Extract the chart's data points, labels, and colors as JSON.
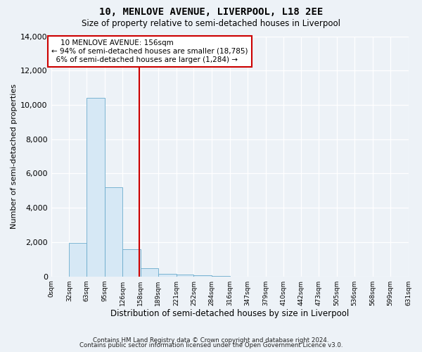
{
  "title": "10, MENLOVE AVENUE, LIVERPOOL, L18 2EE",
  "subtitle": "Size of property relative to semi-detached houses in Liverpool",
  "xlabel": "Distribution of semi-detached houses by size in Liverpool",
  "ylabel": "Number of semi-detached properties",
  "property_size": 156,
  "property_label": "10 MENLOVE AVENUE: 156sqm",
  "pct_smaller": 94,
  "count_smaller": 18785,
  "pct_larger": 6,
  "count_larger": 1284,
  "bin_edges": [
    0,
    32,
    63,
    95,
    126,
    158,
    189,
    221,
    252,
    284,
    316,
    347,
    379,
    410,
    442,
    473,
    505,
    536,
    568,
    599,
    631
  ],
  "bin_labels": [
    "0sqm",
    "32sqm",
    "63sqm",
    "95sqm",
    "126sqm",
    "158sqm",
    "189sqm",
    "221sqm",
    "252sqm",
    "284sqm",
    "316sqm",
    "347sqm",
    "379sqm",
    "410sqm",
    "442sqm",
    "473sqm",
    "505sqm",
    "536sqm",
    "568sqm",
    "599sqm",
    "631sqm"
  ],
  "counts": [
    0,
    1950,
    10400,
    5200,
    1600,
    480,
    170,
    110,
    60,
    10,
    0,
    0,
    0,
    0,
    0,
    0,
    0,
    0,
    0,
    0
  ],
  "bar_color": "#d6e8f5",
  "bar_edge_color": "#6aabcc",
  "highlight_line_color": "#cc0000",
  "box_edge_color": "#cc0000",
  "ylim": [
    0,
    14000
  ],
  "yticks": [
    0,
    2000,
    4000,
    6000,
    8000,
    10000,
    12000,
    14000
  ],
  "footer_line1": "Contains HM Land Registry data © Crown copyright and database right 2024.",
  "footer_line2": "Contains public sector information licensed under the Open Government Licence v3.0.",
  "background_color": "#edf2f7"
}
